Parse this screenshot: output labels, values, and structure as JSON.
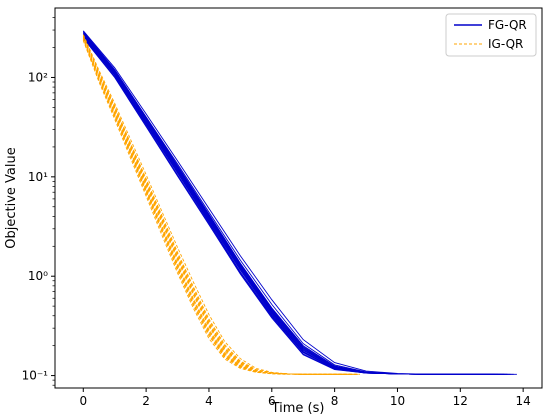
{
  "chart_data": {
    "type": "line",
    "title": "",
    "xlabel": "Time (s)",
    "ylabel": "Objective Value",
    "xlim": [
      -0.9,
      14.6
    ],
    "ylim": [
      0.075,
      500
    ],
    "yscale": "log",
    "grid": false,
    "legend_position": "top-right",
    "x_ticks": [
      0,
      2,
      4,
      6,
      8,
      10,
      12,
      14
    ],
    "x_tick_labels": [
      "0",
      "2",
      "4",
      "6",
      "8",
      "10",
      "12",
      "14"
    ],
    "y_ticks": [
      0.1,
      1,
      10,
      100
    ],
    "y_tick_labels": [
      "10⁻¹",
      "10⁰",
      "10¹",
      "10²"
    ],
    "colors": {
      "FG-QR": "#0000cc",
      "IG-QR": "#ffa500"
    },
    "series": [
      {
        "name": "FG-QR",
        "style": "solid",
        "note_runs": 14,
        "runs": [
          {
            "x": [
              0,
              1,
              2,
              3,
              4,
              5,
              6,
              7,
              8,
              9,
              10,
              11,
              12,
              13,
              13.8
            ],
            "y": [
              290,
              120,
              40,
              13,
              4.2,
              1.35,
              0.48,
              0.2,
              0.125,
              0.108,
              0.104,
              0.103,
              0.103,
              0.103,
              0.103
            ]
          },
          {
            "x": [
              0,
              1,
              2,
              3,
              4,
              5,
              6,
              7,
              8,
              9,
              10,
              11,
              12,
              13,
              13.5
            ],
            "y": [
              270,
              110,
              37,
              12,
              3.9,
              1.25,
              0.44,
              0.19,
              0.121,
              0.107,
              0.104,
              0.103,
              0.103,
              0.103,
              0.103
            ]
          },
          {
            "x": [
              0,
              1,
              2,
              3,
              4,
              5,
              6,
              7,
              8,
              9,
              10,
              11,
              12,
              13
            ],
            "y": [
              255,
              105,
              34,
              11,
              3.5,
              1.1,
              0.4,
              0.17,
              0.117,
              0.106,
              0.104,
              0.103,
              0.103,
              0.103
            ]
          },
          {
            "x": [
              0,
              1,
              2,
              3,
              4,
              5,
              6,
              7,
              8,
              9,
              10,
              11,
              12,
              13.2
            ],
            "y": [
              280,
              115,
              39,
              12.5,
              4.05,
              1.3,
              0.46,
              0.19,
              0.122,
              0.107,
              0.104,
              0.103,
              0.103,
              0.103
            ]
          },
          {
            "x": [
              0,
              1,
              2,
              3,
              4,
              5,
              6,
              7,
              8,
              9,
              10,
              11,
              12,
              13.4
            ],
            "y": [
              265,
              112,
              36,
              11.5,
              3.8,
              1.2,
              0.43,
              0.18,
              0.12,
              0.107,
              0.104,
              0.103,
              0.103,
              0.103
            ]
          },
          {
            "x": [
              0,
              1,
              2,
              3,
              4,
              5,
              6,
              7,
              8,
              9,
              10,
              11,
              12,
              13.1
            ],
            "y": [
              250,
              102,
              33,
              10.5,
              3.4,
              1.08,
              0.39,
              0.165,
              0.116,
              0.106,
              0.104,
              0.103,
              0.103,
              0.103
            ]
          },
          {
            "x": [
              0,
              1,
              2,
              3,
              4,
              5,
              6,
              7,
              8,
              9,
              10,
              11,
              12,
              13.6
            ],
            "y": [
              285,
              118,
              40,
              13.5,
              4.4,
              1.45,
              0.52,
              0.21,
              0.128,
              0.109,
              0.104,
              0.103,
              0.103,
              0.103
            ]
          },
          {
            "x": [
              0,
              1,
              2,
              3,
              4,
              5,
              6,
              7,
              8,
              9,
              10,
              11,
              12,
              13.3
            ],
            "y": [
              260,
              108,
              35,
              11.2,
              3.7,
              1.18,
              0.42,
              0.175,
              0.118,
              0.106,
              0.104,
              0.103,
              0.103,
              0.103
            ]
          },
          {
            "x": [
              0,
              1,
              2,
              3,
              4,
              5,
              6,
              7,
              8,
              9,
              10,
              11,
              12,
              13
            ],
            "y": [
              275,
              114,
              38,
              12.2,
              4,
              1.28,
              0.45,
              0.185,
              0.121,
              0.107,
              0.104,
              0.103,
              0.103,
              0.103
            ]
          },
          {
            "x": [
              0,
              1,
              2,
              3,
              4,
              5,
              6,
              7,
              8,
              9,
              10,
              11,
              12,
              13.7
            ],
            "y": [
              295,
              125,
              43,
              14.5,
              4.8,
              1.6,
              0.58,
              0.23,
              0.135,
              0.111,
              0.105,
              0.103,
              0.103,
              0.103
            ]
          },
          {
            "x": [
              0,
              1,
              2,
              3,
              4,
              5,
              6,
              7,
              8,
              9,
              10,
              11,
              12,
              13.2
            ],
            "y": [
              258,
              106,
              34.5,
              11,
              3.6,
              1.15,
              0.41,
              0.172,
              0.118,
              0.106,
              0.104,
              0.103,
              0.103,
              0.103
            ]
          },
          {
            "x": [
              0,
              1,
              2,
              3,
              4,
              5,
              6,
              7,
              8,
              9,
              10,
              11,
              12,
              13.5
            ],
            "y": [
              282,
              117,
              39.5,
              12.8,
              4.15,
              1.33,
              0.47,
              0.195,
              0.124,
              0.108,
              0.104,
              0.103,
              0.103,
              0.103
            ]
          },
          {
            "x": [
              0,
              1,
              2,
              3,
              4,
              5,
              6,
              7,
              8,
              9,
              10,
              11,
              12,
              13.1
            ],
            "y": [
              248,
              100,
              32,
              10.2,
              3.3,
              1.05,
              0.38,
              0.162,
              0.115,
              0.106,
              0.104,
              0.103,
              0.103,
              0.103
            ]
          },
          {
            "x": [
              0,
              1,
              2,
              3,
              4,
              5,
              6,
              7,
              8,
              9,
              10,
              11,
              12,
              13.4
            ],
            "y": [
              268,
              111,
              36.5,
              11.8,
              3.85,
              1.22,
              0.435,
              0.18,
              0.12,
              0.107,
              0.104,
              0.103,
              0.103,
              0.103
            ]
          }
        ]
      },
      {
        "name": "IG-QR",
        "style": "dashed",
        "note_runs": 14,
        "runs": [
          {
            "x": [
              0,
              0.5,
              1,
              1.5,
              2,
              2.5,
              3,
              3.5,
              4,
              4.5,
              5,
              5.5,
              6,
              6.5,
              7,
              8,
              8.8
            ],
            "y": [
              260,
              110,
              50,
              21,
              9,
              3.8,
              1.6,
              0.72,
              0.34,
              0.19,
              0.135,
              0.113,
              0.106,
              0.104,
              0.103,
              0.103,
              0.103
            ]
          },
          {
            "x": [
              0,
              0.5,
              1,
              1.5,
              2,
              2.5,
              3,
              3.5,
              4,
              4.5,
              5,
              5.5,
              6,
              6.5,
              7,
              8,
              8.5
            ],
            "y": [
              250,
              100,
              44,
              18.5,
              7.8,
              3.2,
              1.35,
              0.6,
              0.29,
              0.17,
              0.127,
              0.11,
              0.105,
              0.104,
              0.103,
              0.103,
              0.103
            ]
          },
          {
            "x": [
              0,
              0.5,
              1,
              1.5,
              2,
              2.5,
              3,
              3.5,
              4,
              4.5,
              5,
              5.5,
              6,
              6.5,
              7,
              8,
              8.6
            ],
            "y": [
              240,
              95,
              41,
              17,
              7.1,
              2.9,
              1.2,
              0.53,
              0.26,
              0.155,
              0.122,
              0.109,
              0.105,
              0.104,
              0.103,
              0.103,
              0.103
            ]
          },
          {
            "x": [
              0,
              0.5,
              1,
              1.5,
              2,
              2.5,
              3,
              3.5,
              4,
              4.5,
              5,
              5.5,
              6,
              6.5,
              7,
              8,
              8.7
            ],
            "y": [
              255,
              105,
              47,
              20,
              8.5,
              3.6,
              1.5,
              0.68,
              0.32,
              0.182,
              0.132,
              0.112,
              0.106,
              0.104,
              0.103,
              0.103,
              0.103
            ]
          },
          {
            "x": [
              0,
              0.5,
              1,
              1.5,
              2,
              2.5,
              3,
              3.5,
              4,
              4.5,
              5,
              5.5,
              6,
              6.5,
              7,
              8,
              8.4
            ],
            "y": [
              235,
              90,
              38,
              15.5,
              6.4,
              2.6,
              1.08,
              0.48,
              0.235,
              0.147,
              0.118,
              0.108,
              0.104,
              0.103,
              0.103,
              0.103,
              0.103
            ]
          },
          {
            "x": [
              0,
              0.5,
              1,
              1.5,
              2,
              2.5,
              3,
              3.5,
              4,
              4.5,
              5,
              5.5,
              6,
              6.5,
              7,
              8,
              8.8
            ],
            "y": [
              270,
              118,
              55,
              24,
              10.5,
              4.5,
              1.95,
              0.88,
              0.41,
              0.22,
              0.148,
              0.118,
              0.108,
              0.104,
              0.103,
              0.103,
              0.103
            ]
          },
          {
            "x": [
              0,
              0.5,
              1,
              1.5,
              2,
              2.5,
              3,
              3.5,
              4,
              4.5,
              5,
              5.5,
              6,
              6.5,
              7,
              8,
              8.6
            ],
            "y": [
              245,
              98,
              43,
              18,
              7.5,
              3.1,
              1.3,
              0.58,
              0.28,
              0.165,
              0.125,
              0.11,
              0.105,
              0.104,
              0.103,
              0.103,
              0.103
            ]
          },
          {
            "x": [
              0,
              0.5,
              1,
              1.5,
              2,
              2.5,
              3,
              3.5,
              4,
              4.5,
              5,
              5.5,
              6,
              6.5,
              7,
              8,
              8.5
            ],
            "y": [
              265,
              113,
              52,
              22,
              9.6,
              4.1,
              1.75,
              0.79,
              0.37,
              0.205,
              0.14,
              0.115,
              0.107,
              0.104,
              0.103,
              0.103,
              0.103
            ]
          },
          {
            "x": [
              0,
              0.5,
              1,
              1.5,
              2,
              2.5,
              3,
              3.5,
              4,
              4.5,
              5,
              5.5,
              6,
              6.5,
              7,
              8,
              8.7
            ],
            "y": [
              238,
              93,
              40,
              16.5,
              6.8,
              2.8,
              1.15,
              0.51,
              0.25,
              0.152,
              0.121,
              0.109,
              0.105,
              0.104,
              0.103,
              0.103,
              0.103
            ]
          },
          {
            "x": [
              0,
              0.5,
              1,
              1.5,
              2,
              2.5,
              3,
              3.5,
              4,
              4.5,
              5,
              5.5,
              6,
              6.5,
              7,
              8,
              8.8
            ],
            "y": [
              258,
              108,
              49,
              20.5,
              8.8,
              3.7,
              1.55,
              0.7,
              0.33,
              0.186,
              0.133,
              0.112,
              0.106,
              0.104,
              0.103,
              0.103,
              0.103
            ]
          },
          {
            "x": [
              0,
              0.5,
              1,
              1.5,
              2,
              2.5,
              3,
              3.5,
              4,
              4.5,
              5,
              5.5,
              6,
              6.5,
              7,
              8,
              8.4
            ],
            "y": [
              248,
              99,
              42.5,
              17.8,
              7.4,
              3.05,
              1.28,
              0.57,
              0.275,
              0.162,
              0.124,
              0.11,
              0.105,
              0.104,
              0.103,
              0.103,
              0.103
            ]
          },
          {
            "x": [
              0,
              0.5,
              1,
              1.5,
              2,
              2.5,
              3,
              3.5,
              4,
              4.5,
              5,
              5.5,
              6,
              6.5,
              7,
              8,
              8.6
            ],
            "y": [
              262,
              111,
              51,
              21.5,
              9.3,
              3.95,
              1.68,
              0.76,
              0.355,
              0.198,
              0.138,
              0.114,
              0.107,
              0.104,
              0.103,
              0.103,
              0.103
            ]
          },
          {
            "x": [
              0,
              0.5,
              1,
              1.5,
              2,
              2.5,
              3,
              3.5,
              4,
              4.5,
              5,
              5.5,
              6,
              6.5,
              7,
              8,
              8.5
            ],
            "y": [
              242,
              96,
              41.5,
              17.3,
              7.2,
              2.95,
              1.22,
              0.54,
              0.265,
              0.158,
              0.123,
              0.109,
              0.105,
              0.104,
              0.103,
              0.103,
              0.103
            ]
          },
          {
            "x": [
              0,
              0.5,
              1,
              1.5,
              2,
              2.5,
              3,
              3.5,
              4,
              4.5,
              5,
              5.5,
              6,
              6.5,
              7,
              8,
              8.7
            ],
            "y": [
              252,
              103,
              46,
              19.3,
              8.2,
              3.45,
              1.45,
              0.65,
              0.31,
              0.176,
              0.13,
              0.111,
              0.106,
              0.104,
              0.103,
              0.103,
              0.103
            ]
          }
        ]
      }
    ]
  }
}
